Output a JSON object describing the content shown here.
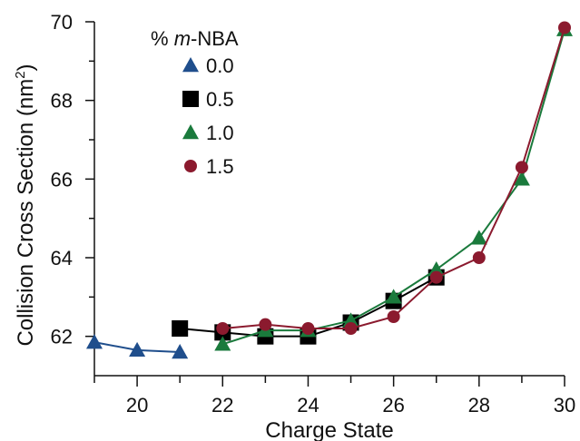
{
  "chart_data": {
    "type": "line",
    "xlabel": "Charge State",
    "ylabel": "Collision Cross Section (nm",
    "ylabel_sup": "2",
    "ylabel_close": ")",
    "xlim": [
      19,
      30
    ],
    "ylim": [
      61,
      70
    ],
    "xticks": [
      20,
      22,
      24,
      26,
      28,
      30
    ],
    "yticks": [
      62,
      64,
      66,
      68,
      70
    ],
    "x_minor_ticks": [
      19,
      21,
      23,
      25,
      27,
      29
    ],
    "y_minor_ticks": [
      63,
      65,
      67,
      69
    ],
    "legend": {
      "title_prefix": "% ",
      "title_italic": "m",
      "title_suffix": "-NBA",
      "placement": "top-left"
    },
    "series": [
      {
        "name": "0.0",
        "marker": "triangle",
        "color": "#1f4e8c",
        "x": [
          19,
          20,
          21
        ],
        "y": [
          61.85,
          61.65,
          61.6
        ]
      },
      {
        "name": "0.5",
        "marker": "square",
        "color": "#000000",
        "x": [
          21,
          22,
          23,
          24,
          25,
          26,
          27
        ],
        "y": [
          62.2,
          62.1,
          62.0,
          62.0,
          62.35,
          62.9,
          63.5
        ]
      },
      {
        "name": "1.0",
        "marker": "triangle",
        "color": "#1a7a3c",
        "x": [
          22,
          23,
          24,
          25,
          26,
          27,
          28,
          29,
          30
        ],
        "y": [
          61.8,
          62.15,
          62.15,
          62.4,
          63.0,
          63.7,
          64.5,
          66.0,
          69.8
        ]
      },
      {
        "name": "1.5",
        "marker": "circle",
        "color": "#8b1a2e",
        "x": [
          22,
          23,
          24,
          25,
          26,
          27,
          28,
          29,
          30
        ],
        "y": [
          62.2,
          62.3,
          62.2,
          62.2,
          62.5,
          63.5,
          64.0,
          66.3,
          69.85
        ]
      }
    ]
  }
}
